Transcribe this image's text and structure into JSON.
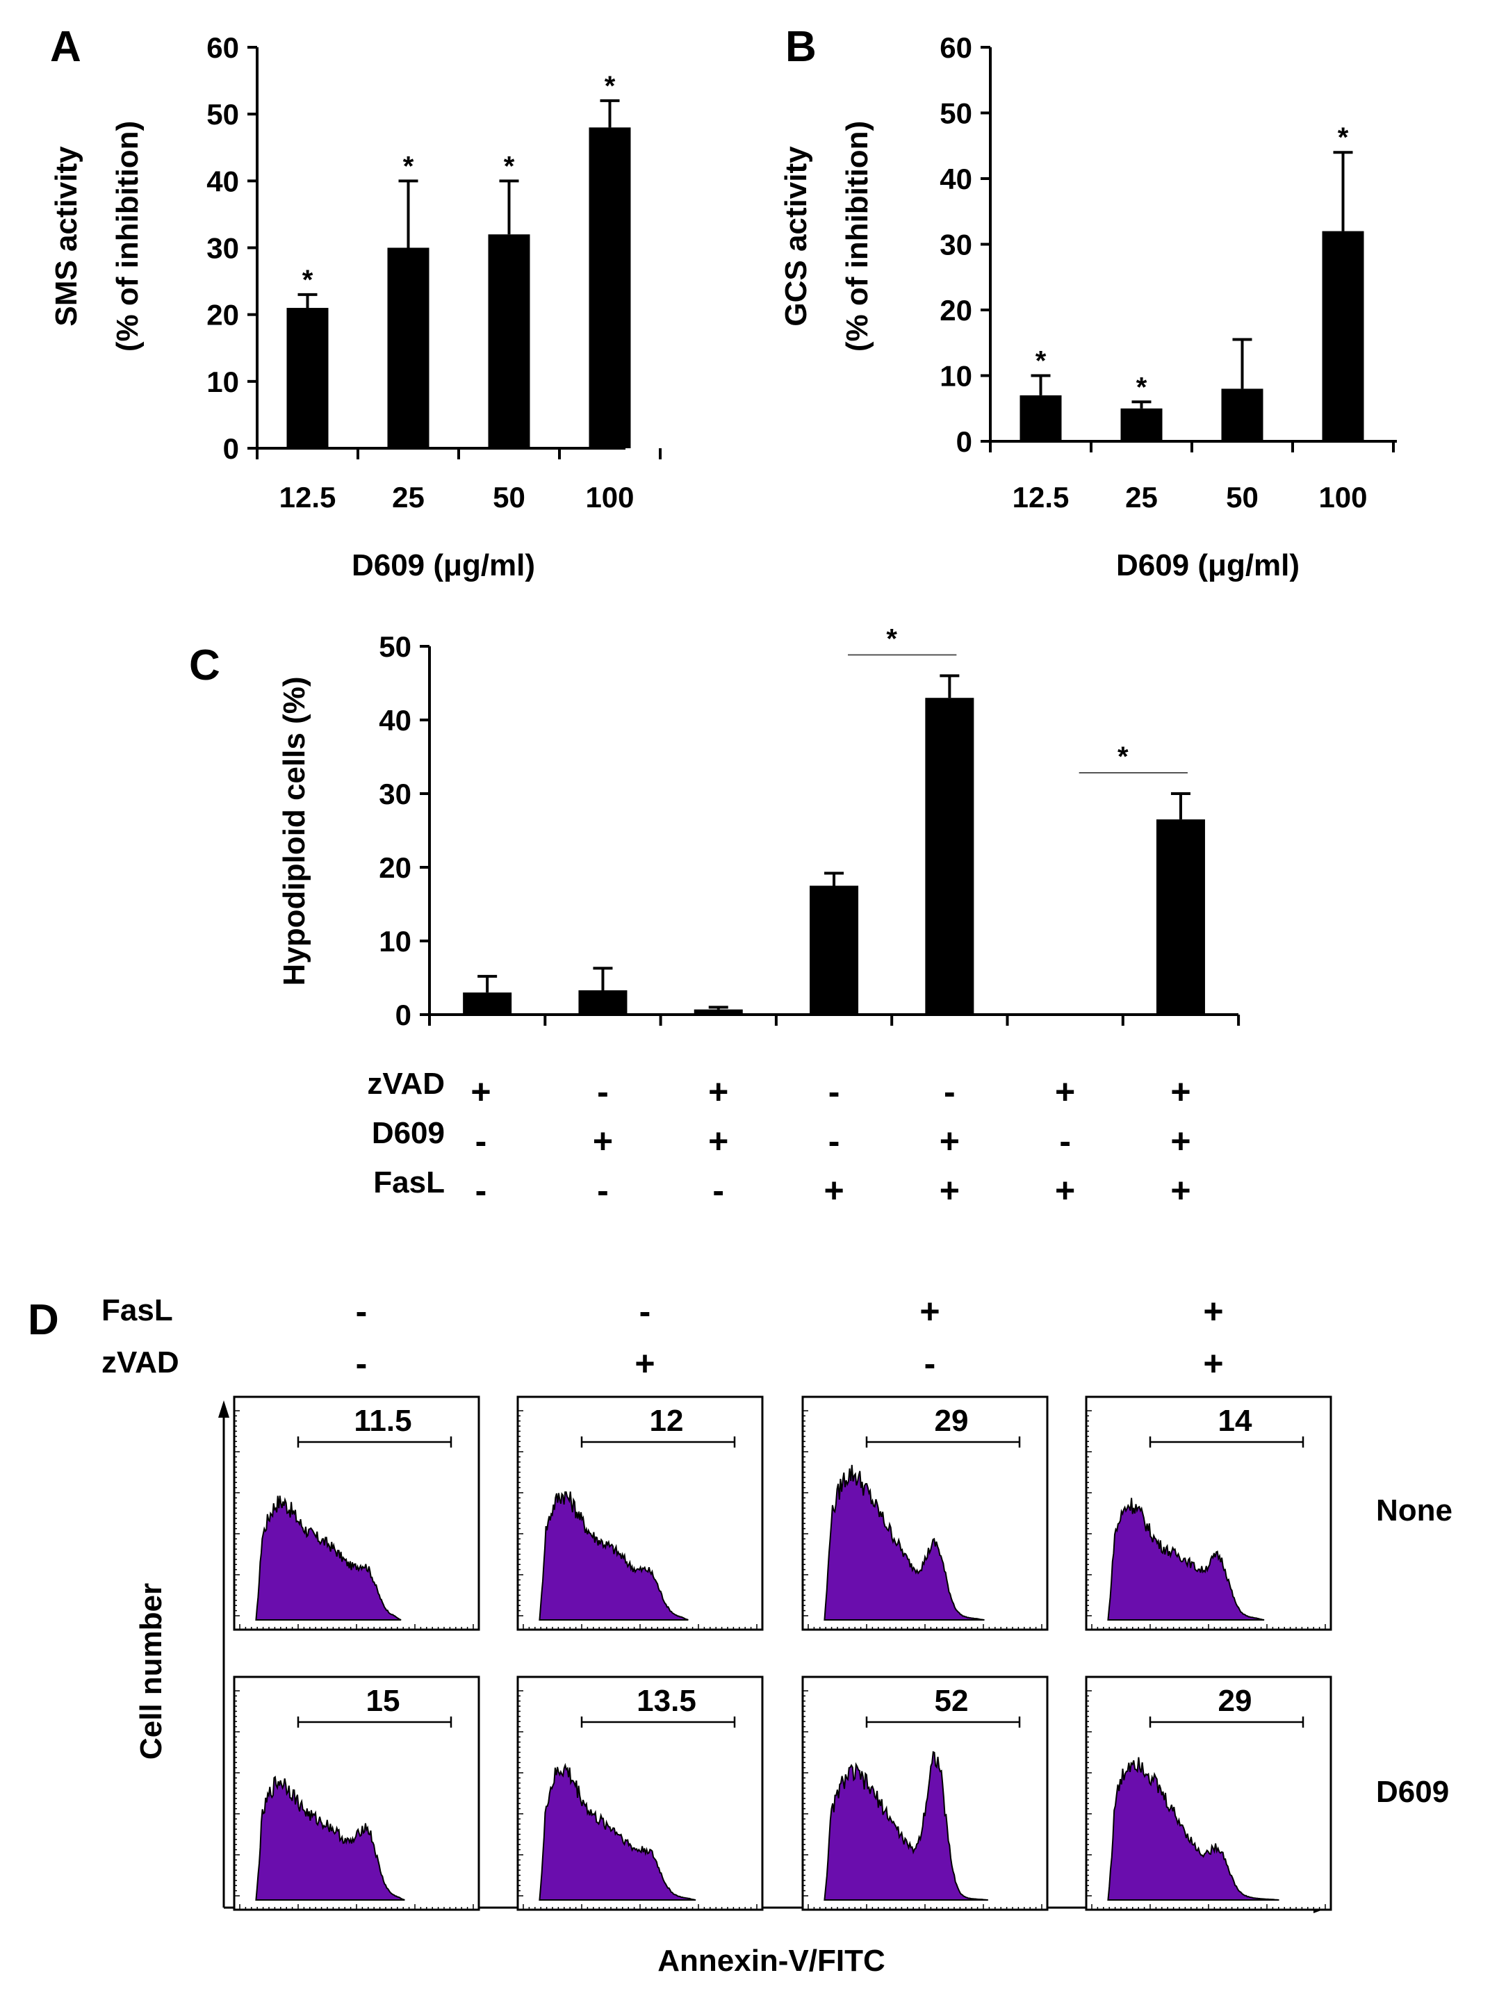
{
  "chart_data": [
    {
      "panel": "A",
      "type": "bar",
      "ylabel_lines": [
        "SMS activity",
        "(% of inhibition)"
      ],
      "xlabel": "D609 (μg/ml)",
      "categories": [
        "12.5",
        "25",
        "50",
        "100"
      ],
      "values": [
        21,
        30,
        32,
        48
      ],
      "errors": [
        2,
        10,
        8,
        4
      ],
      "significance": [
        "*",
        "*",
        "*",
        "*"
      ],
      "ylim": [
        0,
        60
      ],
      "yticks": [
        0,
        10,
        20,
        30,
        40,
        50,
        60
      ],
      "bar_color": "#000000"
    },
    {
      "panel": "B",
      "type": "bar",
      "ylabel_lines": [
        "GCS activity",
        "(% of inhibition)"
      ],
      "xlabel": "D609 (μg/ml)",
      "categories": [
        "12.5",
        "25",
        "50",
        "100"
      ],
      "values": [
        7,
        5,
        8,
        32
      ],
      "errors": [
        3,
        1,
        7.5,
        12
      ],
      "significance": [
        "*",
        "*",
        "",
        "*"
      ],
      "ylim": [
        0,
        60
      ],
      "yticks": [
        0,
        10,
        20,
        30,
        40,
        50,
        60
      ],
      "bar_color": "#000000"
    },
    {
      "panel": "C",
      "type": "bar",
      "ylabel": "Hypodiploid cells (%)",
      "values": [
        3,
        3.3,
        0.7,
        17.5,
        43,
        0,
        26.5
      ],
      "errors": [
        2.2,
        3,
        0.3,
        1.7,
        3,
        0,
        3.5
      ],
      "ylim": [
        0,
        50
      ],
      "yticks": [
        0,
        10,
        20,
        30,
        40,
        50
      ],
      "conditions": [
        {
          "label": "zVAD",
          "signs": [
            "+",
            "-",
            "+",
            "-",
            "-",
            "+",
            "+"
          ]
        },
        {
          "label": "D609",
          "signs": [
            "-",
            "+",
            "+",
            "-",
            "+",
            "-",
            "+"
          ]
        },
        {
          "label": "FasL",
          "signs": [
            "-",
            "-",
            "-",
            "+",
            "+",
            "+",
            "+"
          ]
        }
      ],
      "significance_brackets": [
        {
          "from": 3,
          "to": 4,
          "label": "*"
        },
        {
          "from": 5,
          "to": 6,
          "label": "*"
        }
      ],
      "bar_color": "#000000"
    },
    {
      "panel": "D",
      "type": "histogram",
      "xlabel": "Annexin-V/FITC",
      "ylabel": "Cell number",
      "column_conditions": [
        {
          "label": "FasL",
          "signs": [
            "-",
            "-",
            "+",
            "+"
          ]
        },
        {
          "label": "zVAD",
          "signs": [
            "-",
            "+",
            "-",
            "+"
          ]
        }
      ],
      "row_labels": [
        "None",
        "D609"
      ],
      "gate_percentages": [
        [
          "11.5",
          "12",
          "29",
          "14"
        ],
        [
          "15",
          "13.5",
          "52",
          "29"
        ]
      ],
      "fill_color": "#6a0dad"
    }
  ]
}
